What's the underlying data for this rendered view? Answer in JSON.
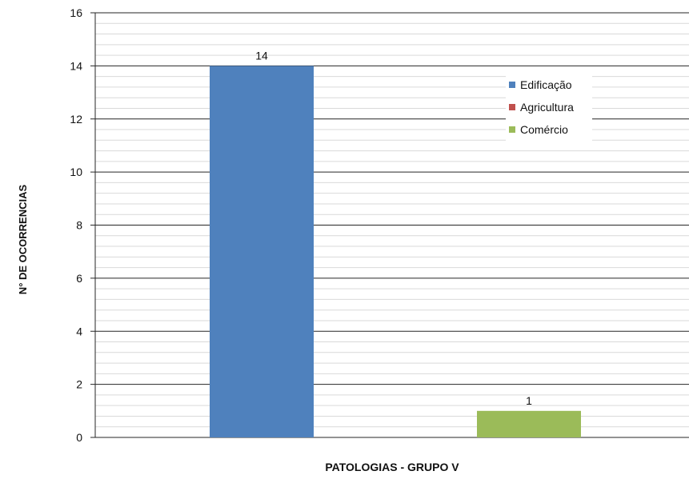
{
  "chart_data": {
    "type": "bar",
    "title": "",
    "xlabel": "PATOLOGIAS - GRUPO V",
    "ylabel": "N° DE OCORRENCIAS",
    "ylim": [
      0,
      16
    ],
    "yticks": [
      0,
      2,
      4,
      6,
      8,
      10,
      12,
      14,
      16
    ],
    "grid": true,
    "legend_position": "top-right",
    "series": [
      {
        "name": "Edificação",
        "color": "#4f81bd",
        "values": [
          14
        ]
      },
      {
        "name": "Agricultura",
        "color": "#c0504d",
        "values": [
          0
        ]
      },
      {
        "name": "Comércio",
        "color": "#9bbb59",
        "values": [
          1
        ]
      }
    ],
    "bars": [
      {
        "series": "Edificação",
        "value": 14,
        "label": "14",
        "color": "#4f81bd"
      },
      {
        "series": "Comércio",
        "value": 1,
        "label": "1",
        "color": "#9bbb59"
      }
    ]
  }
}
